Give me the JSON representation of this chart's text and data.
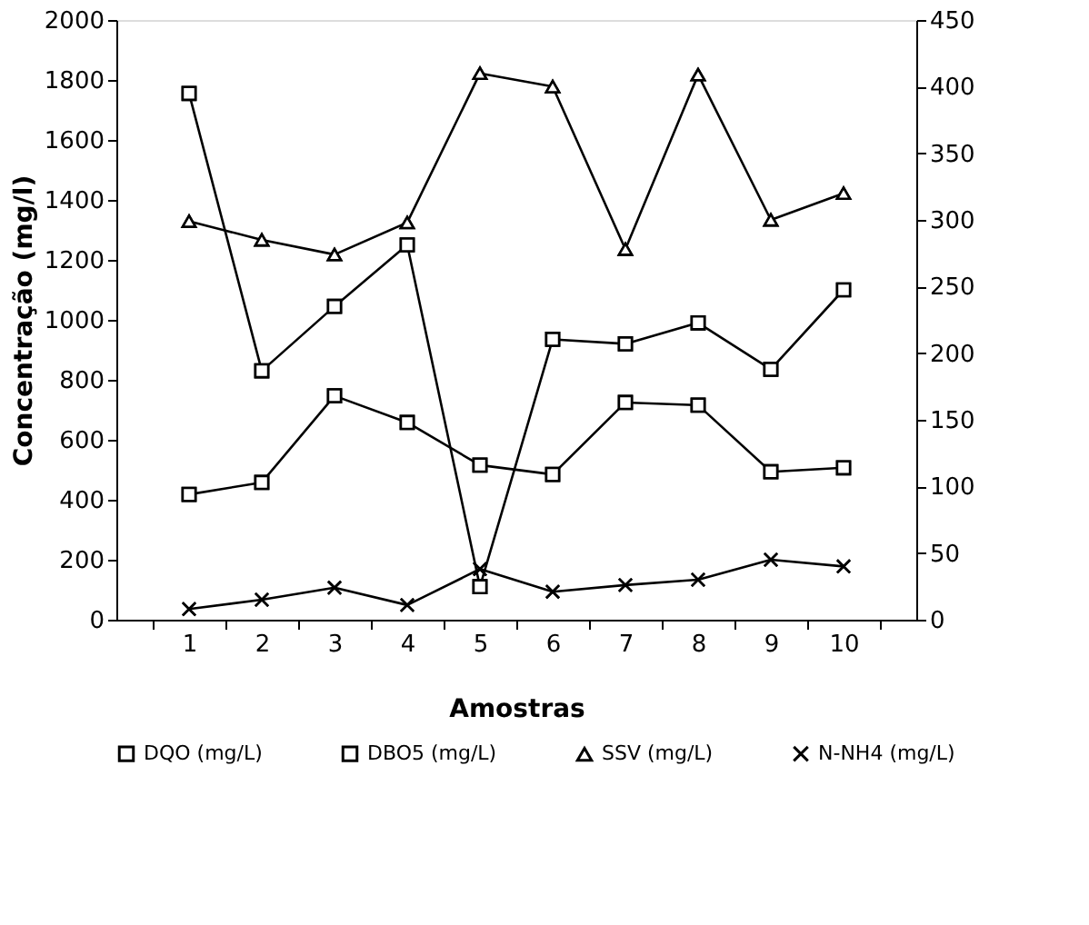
{
  "chart_data": {
    "type": "line",
    "xlabel": "Amostras",
    "ylabel": "Concentração (mg/l)",
    "categories": [
      "1",
      "2",
      "3",
      "4",
      "5",
      "6",
      "7",
      "8",
      "9",
      "10"
    ],
    "series": [
      {
        "name": "DQO (mg/L)",
        "color": "#000000",
        "marker": "square",
        "values": [
          1755,
          830,
          1045,
          1250,
          110,
          935,
          920,
          990,
          835,
          1100
        ]
      },
      {
        "name": "DBO5 (mg/L)",
        "color": "#000000",
        "marker": "square",
        "axis": "y2",
        "values": [
          94,
          103,
          168,
          148,
          116,
          109,
          163,
          161,
          111,
          114
        ]
      },
      {
        "name": "SSV (mg/L)",
        "color": "#000000",
        "marker": "triangle",
        "axis": "y2",
        "values": [
          299,
          285,
          274,
          298,
          410,
          400,
          278,
          409,
          300,
          320
        ]
      },
      {
        "name": "N-NH4 (mg/L)",
        "color": "#000000",
        "marker": "cross",
        "axis": "y2",
        "values": [
          8,
          15,
          24,
          11,
          38,
          21,
          26,
          30,
          45,
          40
        ]
      }
    ],
    "ylim": [
      0,
      2000
    ],
    "yticks": [
      0,
      200,
      400,
      600,
      800,
      1000,
      1200,
      1400,
      1600,
      1800,
      2000
    ],
    "y2lim": [
      0,
      450
    ],
    "y2ticks": [
      0,
      50,
      100,
      150,
      200,
      250,
      300,
      350,
      400,
      450
    ],
    "grid": false,
    "legend": "bottom",
    "line_style": "solid"
  }
}
